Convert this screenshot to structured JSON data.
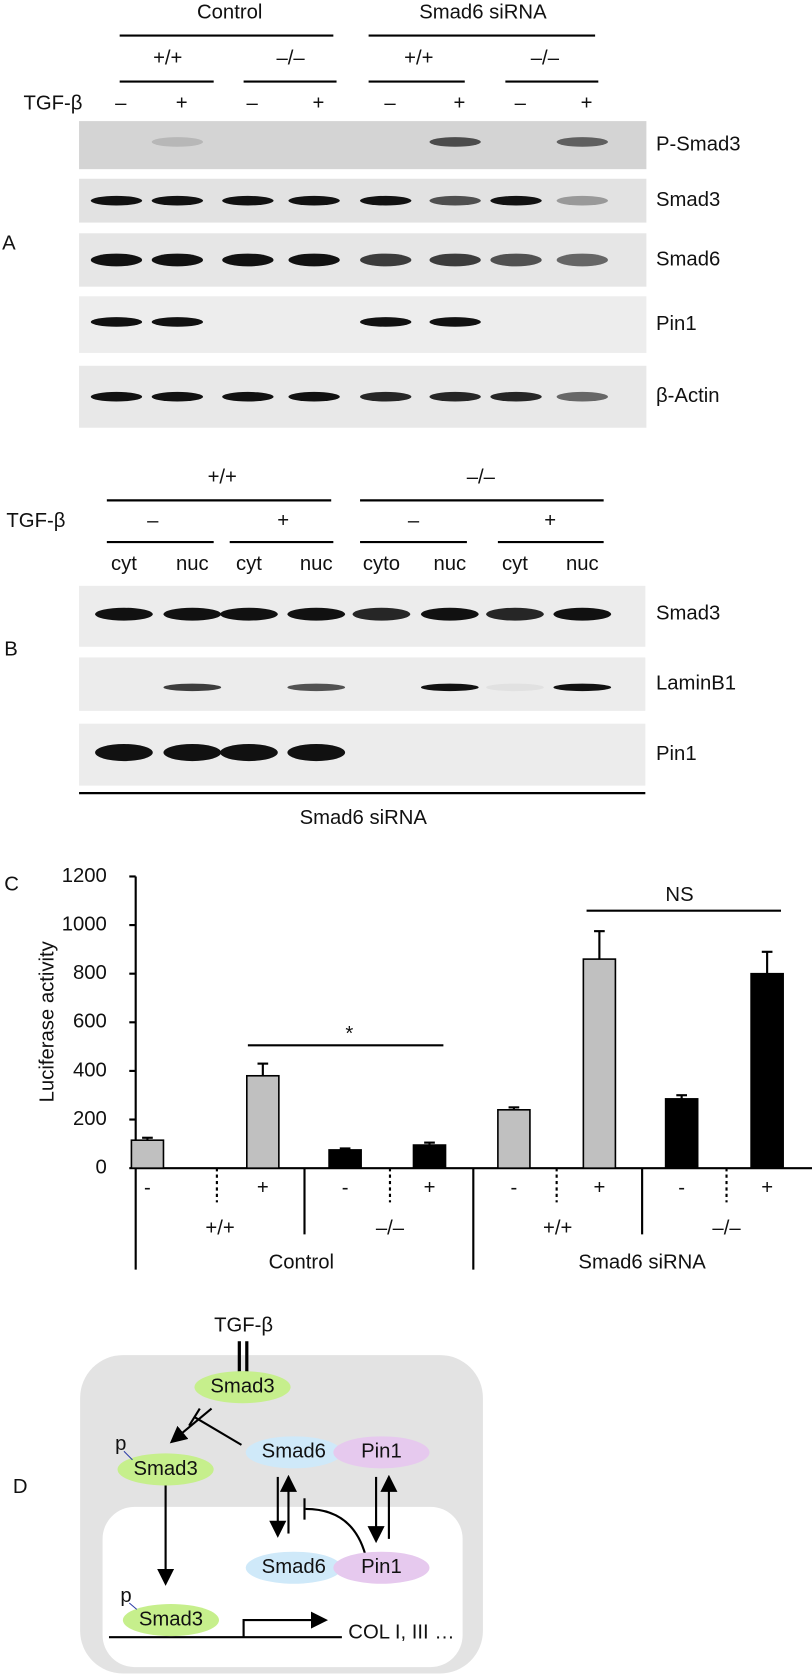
{
  "panel_a": {
    "label": "A",
    "groups": [
      "Control",
      "Smad6 siRNA"
    ],
    "genotypes": [
      "+/+",
      "–/–",
      "+/+",
      "–/–"
    ],
    "treatment_label": "TGF-β",
    "treatments": [
      "–",
      "+",
      "–",
      "+",
      "–",
      "+",
      "–",
      "+"
    ],
    "blots": [
      "P-Smad3",
      "Smad3",
      "Smad6",
      "Pin1",
      "β-Actin"
    ]
  },
  "panel_b": {
    "label": "B",
    "genotypes": [
      "+/+",
      "–/–"
    ],
    "treatment_label": "TGF-β",
    "treatments": [
      "–",
      "+",
      "–",
      "+"
    ],
    "fractions": [
      "cyt",
      "nuc",
      "cyt",
      "nuc",
      "cyto",
      "nuc",
      "cyt",
      "nuc"
    ],
    "blots": [
      "Smad3",
      "LaminB1",
      "Pin1"
    ],
    "footer": "Smad6 siRNA"
  },
  "chart_data": {
    "type": "bar",
    "panel_label": "C",
    "y_label": "Luciferase activity",
    "categories": [
      "-",
      "+",
      "-",
      "+",
      "-",
      "+",
      "-",
      "+"
    ],
    "values": [
      115,
      380,
      75,
      95,
      240,
      860,
      285,
      800
    ],
    "errors": [
      10,
      50,
      6,
      10,
      10,
      115,
      15,
      90
    ],
    "colors": [
      "#c0c0c0",
      "#c0c0c0",
      "#000000",
      "#000000",
      "#c0c0c0",
      "#c0c0c0",
      "#000000",
      "#000000"
    ],
    "groups": [
      "+/+",
      "–/–",
      "+/+",
      "–/–"
    ],
    "supergroups": [
      "Control",
      "Smad6 siRNA"
    ],
    "annotations": [
      "*",
      "NS"
    ],
    "ylim": [
      0,
      1200
    ],
    "yticks": [
      0,
      200,
      400,
      600,
      800,
      1000,
      1200
    ]
  },
  "panel_d": {
    "label": "D",
    "ligand": "TGF-β",
    "nodes": [
      "Smad3",
      "Smad3",
      "Smad6",
      "Pin1",
      "Smad6",
      "Pin1",
      "Smad3"
    ],
    "phospho": [
      "p",
      "p"
    ],
    "genes": "COL I, III …"
  }
}
